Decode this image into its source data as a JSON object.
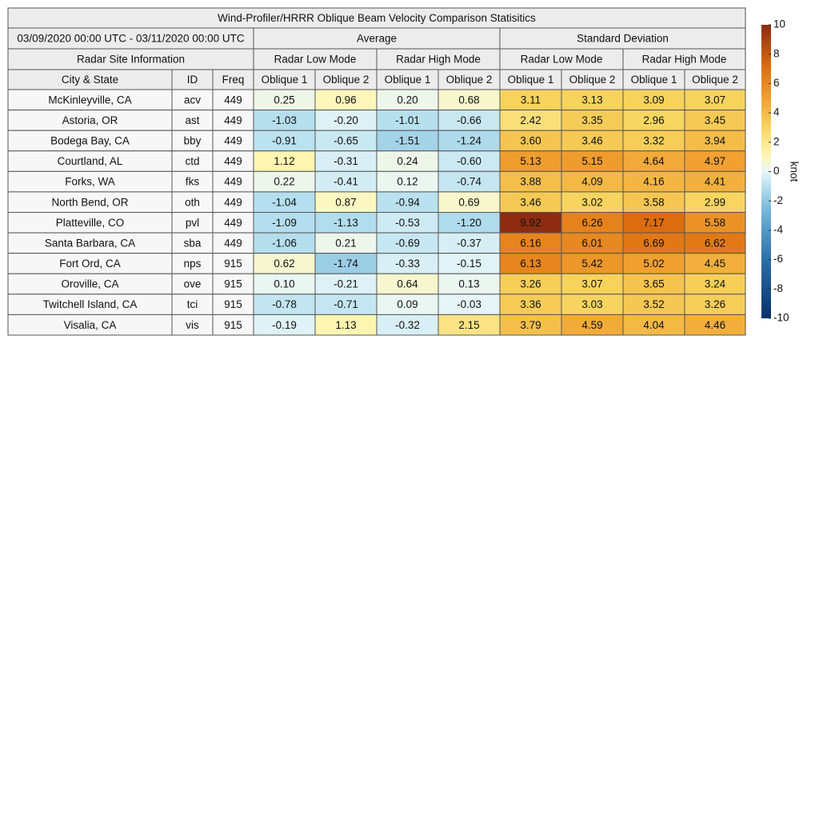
{
  "title": "Wind-Profiler/HRRR Oblique Beam Velocity Comparison Statisitics",
  "period": "03/09/2020 00:00 UTC - 03/11/2020 00:00 UTC",
  "groups": [
    "Average",
    "Standard Deviation"
  ],
  "site_header": "Radar Site Information",
  "modes": [
    "Radar Low Mode",
    "Radar High Mode",
    "Radar Low Mode",
    "Radar High Mode"
  ],
  "columns": [
    "City & State",
    "ID",
    "Freq",
    "Oblique 1",
    "Oblique 2",
    "Oblique 1",
    "Oblique 2",
    "Oblique 1",
    "Oblique 2",
    "Oblique 1",
    "Oblique 2"
  ],
  "rows": [
    [
      "McKinleyville, CA",
      "acv",
      "449",
      "0.25",
      "0.96",
      "0.20",
      "0.68",
      "3.11",
      "3.13",
      "3.09",
      "3.07"
    ],
    [
      "Astoria, OR",
      "ast",
      "449",
      "-1.03",
      "-0.20",
      "-1.01",
      "-0.66",
      "2.42",
      "3.35",
      "2.96",
      "3.45"
    ],
    [
      "Bodega Bay, CA",
      "bby",
      "449",
      "-0.91",
      "-0.65",
      "-1.51",
      "-1.24",
      "3.60",
      "3.46",
      "3.32",
      "3.94"
    ],
    [
      "Courtland, AL",
      "ctd",
      "449",
      "1.12",
      "-0.31",
      "0.24",
      "-0.60",
      "5.13",
      "5.15",
      "4.64",
      "4.97"
    ],
    [
      "Forks, WA",
      "fks",
      "449",
      "0.22",
      "-0.41",
      "0.12",
      "-0.74",
      "3.88",
      "4.09",
      "4.16",
      "4.41"
    ],
    [
      "North Bend, OR",
      "oth",
      "449",
      "-1.04",
      "0.87",
      "-0.94",
      "0.69",
      "3.46",
      "3.02",
      "3.58",
      "2.99"
    ],
    [
      "Platteville, CO",
      "pvl",
      "449",
      "-1.09",
      "-1.13",
      "-0.53",
      "-1.20",
      "9.92",
      "6.26",
      "7.17",
      "5.58"
    ],
    [
      "Santa Barbara, CA",
      "sba",
      "449",
      "-1.06",
      "0.21",
      "-0.69",
      "-0.37",
      "6.16",
      "6.01",
      "6.69",
      "6.62"
    ],
    [
      "Fort Ord, CA",
      "nps",
      "915",
      "0.62",
      "-1.74",
      "-0.33",
      "-0.15",
      "6.13",
      "5.42",
      "5.02",
      "4.45"
    ],
    [
      "Oroville, CA",
      "ove",
      "915",
      "0.10",
      "-0.21",
      "0.64",
      "0.13",
      "3.26",
      "3.07",
      "3.65",
      "3.24"
    ],
    [
      "Twitchell Island, CA",
      "tci",
      "915",
      "-0.78",
      "-0.71",
      "0.09",
      "-0.03",
      "3.36",
      "3.03",
      "3.52",
      "3.26"
    ],
    [
      "Visalia, CA",
      "vis",
      "915",
      "-0.19",
      "1.13",
      "-0.32",
      "2.15",
      "3.79",
      "4.59",
      "4.04",
      "4.46"
    ]
  ],
  "colorbar": {
    "label": "knot",
    "lim": [
      -10,
      10
    ],
    "ticks": [
      -10,
      -8,
      -6,
      -4,
      -2,
      0,
      2,
      4,
      6,
      8,
      10
    ]
  }
}
